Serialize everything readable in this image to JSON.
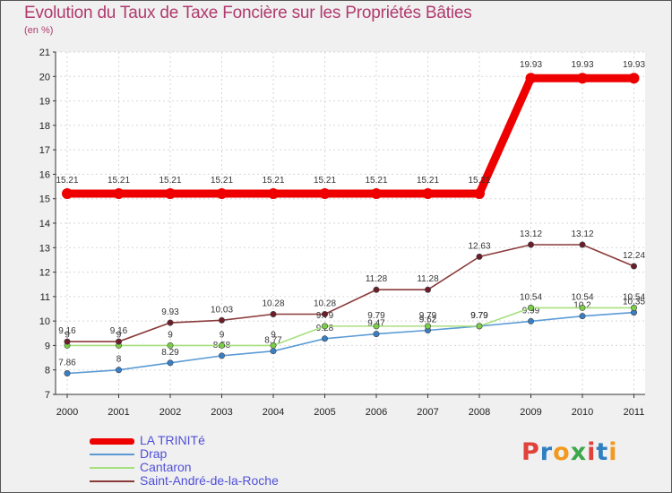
{
  "header": {
    "title": "Evolution du Taux de Taxe Foncière sur les Propriétés Bâties",
    "unit": "(en %)"
  },
  "brand": {
    "parts": [
      {
        "ch": "P",
        "color": "#e0413a"
      },
      {
        "ch": "r",
        "color": "#2f7fc1"
      },
      {
        "ch": "o",
        "color": "#f29a1f"
      },
      {
        "ch": "x",
        "color": "#3ca84a"
      },
      {
        "ch": "i",
        "color": "#e0413a"
      },
      {
        "ch": "t",
        "color": "#2f7fc1"
      },
      {
        "ch": "i",
        "color": "#f29a1f"
      }
    ]
  },
  "chart_data": {
    "type": "line",
    "title": "Evolution du Taux de Taxe Foncière sur les Propriétés Bâties",
    "ylabel": "(en %)",
    "xlabel": "",
    "ylim": [
      7,
      21
    ],
    "yticks": [
      7,
      8,
      9,
      10,
      11,
      12,
      13,
      14,
      15,
      16,
      17,
      18,
      19,
      20,
      21
    ],
    "grid": true,
    "legend_position": "bottom-left",
    "categories": [
      "2000",
      "2001",
      "2002",
      "2003",
      "2004",
      "2005",
      "2006",
      "2007",
      "2008",
      "2009",
      "2010",
      "2011"
    ],
    "series": [
      {
        "name": "Drap",
        "color": "#5b9bd5",
        "dot": "#3a7fc4",
        "width": "thin",
        "values": [
          7.86,
          8,
          8.29,
          8.58,
          8.77,
          9.28,
          9.47,
          9.62,
          9.79,
          9.99,
          10.2,
          10.35
        ],
        "labels": [
          "7.86",
          "8",
          "8.29",
          "8.58",
          "8.77",
          "9.28",
          "9.47",
          "9.62",
          "9.79",
          "9.99",
          "10.2",
          "10.35"
        ]
      },
      {
        "name": "Cantaron",
        "color": "#a6e07c",
        "dot": "#7ccd4a",
        "width": "thin",
        "values": [
          9,
          9,
          9,
          9,
          9,
          9.79,
          9.79,
          9.79,
          9.79,
          10.54,
          10.54,
          10.54
        ],
        "labels": [
          "9",
          "9",
          "9",
          "9",
          "9",
          "9.79",
          "9.79",
          "9.79",
          "9.79",
          "10.54",
          "10.54",
          "10.54"
        ]
      },
      {
        "name": "Saint-André-de-la-Roche",
        "color": "#8b3a3a",
        "dot": "#6b1e2a",
        "width": "thin",
        "values": [
          9.16,
          9.16,
          9.93,
          10.03,
          10.28,
          10.28,
          11.28,
          11.28,
          12.63,
          13.12,
          13.12,
          12.24
        ],
        "labels": [
          "9.16",
          "9.16",
          "9.93",
          "10.03",
          "10.28",
          "10.28",
          "11.28",
          "11.28",
          "12.63",
          "13.12",
          "13.12",
          "12.24"
        ]
      },
      {
        "name": "LA TRINITé",
        "color": "#ee0000",
        "dot": "#ee0000",
        "width": "thick",
        "values": [
          15.21,
          15.21,
          15.21,
          15.21,
          15.21,
          15.21,
          15.21,
          15.21,
          15.21,
          19.93,
          19.93,
          19.93
        ],
        "labels": [
          "15.21",
          "15.21",
          "15.21",
          "15.21",
          "15.21",
          "15.21",
          "15.21",
          "15.21",
          "15.21",
          "19.93",
          "19.93",
          "19.93"
        ]
      }
    ],
    "legend": [
      {
        "name": "LA TRINITé",
        "color": "#ee0000",
        "width": "thick"
      },
      {
        "name": "Drap",
        "color": "#5b9bd5",
        "width": "thin"
      },
      {
        "name": "Cantaron",
        "color": "#a6e07c",
        "width": "thin"
      },
      {
        "name": "Saint-André-de-la-Roche",
        "color": "#8b3a3a",
        "width": "thin"
      }
    ]
  }
}
